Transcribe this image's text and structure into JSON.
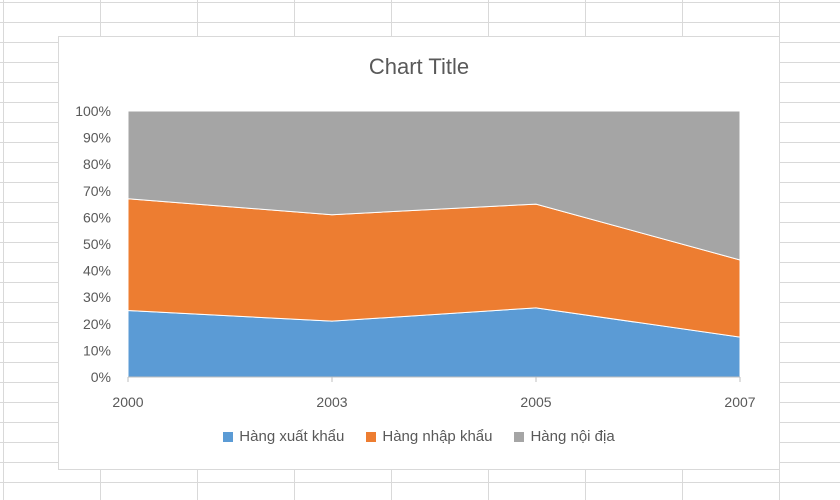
{
  "chart_data": {
    "type": "area",
    "stacked": "percent",
    "title": "Chart Title",
    "categories": [
      "2000",
      "2003",
      "2005",
      "2007"
    ],
    "ylim": [
      0,
      100
    ],
    "yticks": [
      "0%",
      "10%",
      "20%",
      "30%",
      "40%",
      "50%",
      "60%",
      "70%",
      "80%",
      "90%",
      "100%"
    ],
    "grid": false,
    "legend_position": "bottom",
    "series": [
      {
        "name": "Hàng xuất khẩu",
        "color": "#5b9bd5",
        "values": [
          25,
          21,
          26,
          15
        ]
      },
      {
        "name": "Hàng nhập khẩu",
        "color": "#ed7d31",
        "values": [
          42,
          40,
          39,
          29
        ]
      },
      {
        "name": "Hàng nội địa",
        "color": "#a5a5a5",
        "values": [
          33,
          39,
          35,
          56
        ]
      }
    ]
  }
}
